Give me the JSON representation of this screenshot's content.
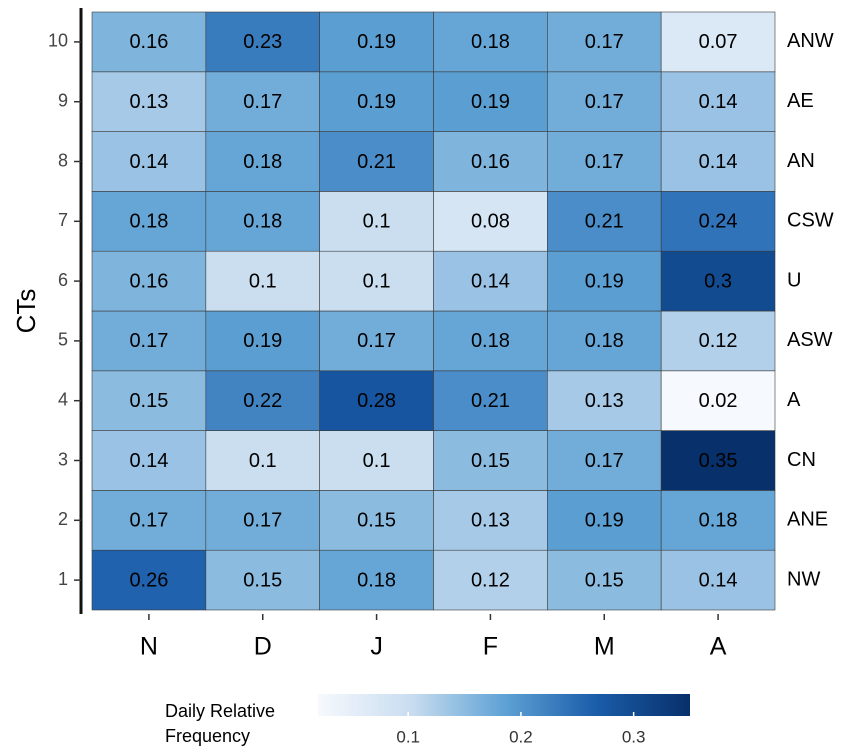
{
  "chart_data": {
    "type": "heatmap",
    "y_label": "CTs",
    "categories": [
      "N",
      "D",
      "J",
      "F",
      "M",
      "A"
    ],
    "y_categories": [
      "1",
      "2",
      "3",
      "4",
      "5",
      "6",
      "7",
      "8",
      "9",
      "10"
    ],
    "row_labels": [
      "NW",
      "ANE",
      "CN",
      "A",
      "ASW",
      "U",
      "CSW",
      "AN",
      "AE",
      "ANW"
    ],
    "values": [
      [
        0.26,
        0.15,
        0.18,
        0.12,
        0.15,
        0.14
      ],
      [
        0.17,
        0.17,
        0.15,
        0.13,
        0.19,
        0.18
      ],
      [
        0.14,
        0.1,
        0.1,
        0.15,
        0.17,
        0.35
      ],
      [
        0.15,
        0.22,
        0.28,
        0.21,
        0.13,
        0.02
      ],
      [
        0.17,
        0.19,
        0.17,
        0.18,
        0.18,
        0.12
      ],
      [
        0.16,
        0.1,
        0.1,
        0.14,
        0.19,
        0.3
      ],
      [
        0.18,
        0.18,
        0.1,
        0.08,
        0.21,
        0.24
      ],
      [
        0.14,
        0.18,
        0.21,
        0.16,
        0.17,
        0.14
      ],
      [
        0.13,
        0.17,
        0.19,
        0.19,
        0.17,
        0.14
      ],
      [
        0.16,
        0.23,
        0.19,
        0.18,
        0.17,
        0.07
      ]
    ],
    "colorbar_title": "Daily Relative Frequency",
    "clim": [
      0.02,
      0.35
    ],
    "colorbar_ticks": [
      0.1,
      0.2,
      0.3
    ],
    "colorscale": [
      "#f6f9fd",
      "#c9ddf0",
      "#5fa2d5",
      "#1a5ca9",
      "#08306b"
    ]
  }
}
